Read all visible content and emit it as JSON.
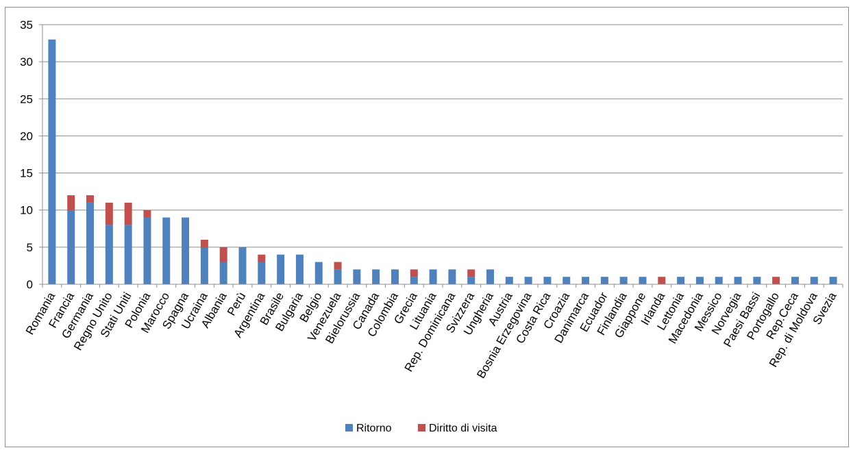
{
  "chart_data": {
    "type": "bar",
    "stacked": true,
    "categories": [
      "Romania",
      "Francia",
      "Germania",
      "Regno Unito",
      "Stati Uniti",
      "Polonia",
      "Marocco",
      "Spagna",
      "Ucraina",
      "Albania",
      "Perù",
      "Argentina",
      "Brasile",
      "Bulgaria",
      "Belgio",
      "Venezuela",
      "Bielorussia",
      "Canada",
      "Colombia",
      "Grecia",
      "Lituania",
      "Rep. Dominicana",
      "Svizzera",
      "Ungheria",
      "Austria",
      "Bosnia Erzegovina",
      "Costa Rica",
      "Croazia",
      "Danimarca",
      "Ecuador",
      "Finlandia",
      "Giappone",
      "Irlanda",
      "Lettonia",
      "Macedonia",
      "Messico",
      "Norvegia",
      "Paesi Bassi",
      "Portogallo",
      "Rep.Ceca",
      "Rep. di Moldova",
      "Svezia"
    ],
    "series": [
      {
        "name": "Ritorno",
        "color": "#4F81BD",
        "values": [
          33,
          10,
          11,
          8,
          8,
          9,
          9,
          9,
          5,
          3,
          5,
          3,
          4,
          4,
          3,
          2,
          2,
          2,
          2,
          1,
          2,
          2,
          1,
          2,
          1,
          1,
          1,
          1,
          1,
          1,
          1,
          1,
          0,
          1,
          1,
          1,
          1,
          1,
          0,
          1,
          1,
          1
        ]
      },
      {
        "name": "Diritto di visita",
        "color": "#C0504D",
        "values": [
          0,
          2,
          1,
          3,
          3,
          1,
          0,
          0,
          1,
          2,
          0,
          1,
          0,
          0,
          0,
          1,
          0,
          0,
          0,
          1,
          0,
          0,
          1,
          0,
          0,
          0,
          0,
          0,
          0,
          0,
          0,
          0,
          1,
          0,
          0,
          0,
          0,
          0,
          1,
          0,
          0,
          0
        ]
      }
    ],
    "ylim": [
      0,
      35
    ],
    "yticks": [
      0,
      5,
      10,
      15,
      20,
      25,
      30,
      35
    ],
    "grid": true,
    "legend": "bottom",
    "xlabel": "",
    "ylabel": "",
    "title": ""
  }
}
